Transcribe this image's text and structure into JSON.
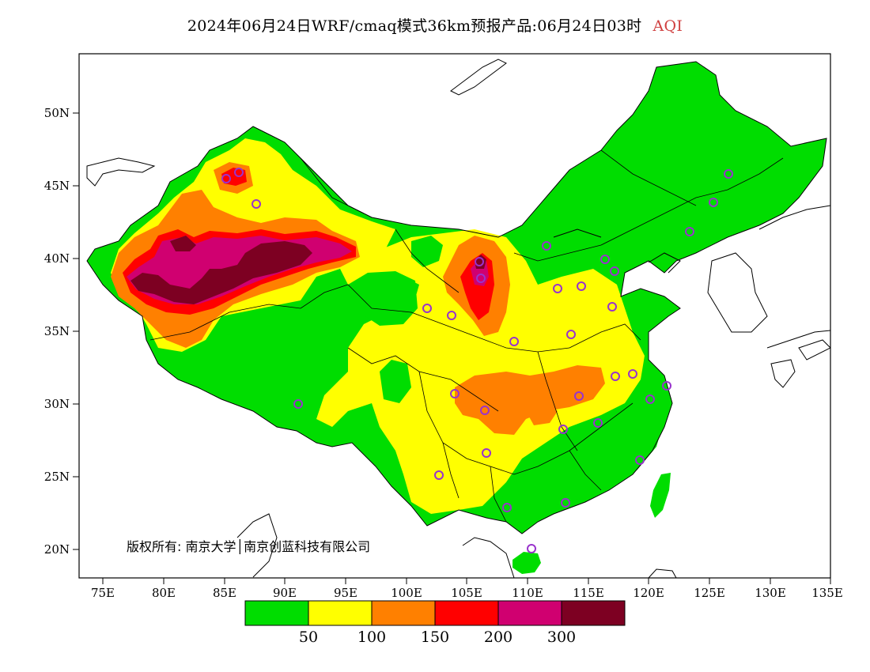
{
  "title": {
    "text": "2024年06月24日WRF/cmaq模式36km预报产品:06月24日03时",
    "variable": "AQI",
    "variable_color": "#d04040"
  },
  "axes": {
    "lat_labels": [
      "50N",
      "45N",
      "40N",
      "35N",
      "30N",
      "25N",
      "20N"
    ],
    "lon_labels": [
      "75E",
      "80E",
      "85E",
      "90E",
      "95E",
      "100E",
      "105E",
      "110E",
      "115E",
      "120E",
      "125E",
      "130E",
      "135E"
    ]
  },
  "copyright": "版权所有: 南京大学│南京创蓝科技有限公司",
  "legend": {
    "colors": [
      "#00dd00",
      "#ffff00",
      "#ff8000",
      "#ff0000",
      "#d00070",
      "#7d0022"
    ],
    "labels": [
      "50",
      "100",
      "150",
      "200",
      "300"
    ]
  },
  "station_marker_color": "#9933cc"
}
